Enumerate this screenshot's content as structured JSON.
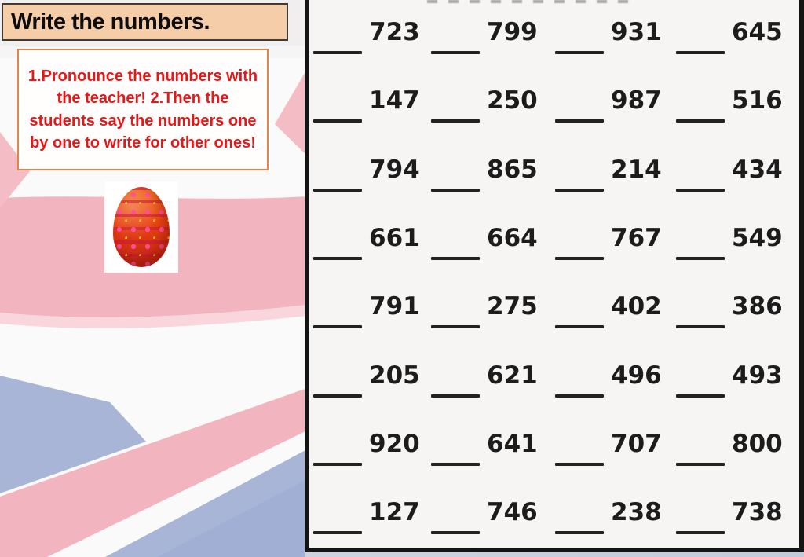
{
  "slide": {
    "kind": "presentation-slide",
    "background": "faded Union Jack flag (left), number worksheet (right)"
  },
  "title_box": {
    "text": "Write the numbers."
  },
  "instructions": {
    "text": "1.Pronounce the numbers with the teacher! 2.Then the students say the numbers one by one to write for other ones!"
  },
  "egg": {
    "description": "decorated red-orange Easter egg picture on white card"
  },
  "worksheet": {
    "blank_label": "____",
    "rows": [
      [
        "723",
        "799",
        "931",
        "645"
      ],
      [
        "147",
        "250",
        "987",
        "516"
      ],
      [
        "794",
        "865",
        "214",
        "434"
      ],
      [
        "661",
        "664",
        "767",
        "549"
      ],
      [
        "791",
        "275",
        "402",
        "386"
      ],
      [
        "205",
        "621",
        "496",
        "493"
      ],
      [
        "920",
        "641",
        "707",
        "800"
      ],
      [
        "127",
        "746",
        "238",
        "738"
      ]
    ]
  },
  "colors": {
    "flag_pink": "#f2b4be",
    "flag_blue": "#a9b5d7",
    "title_peach": "#f6cda9",
    "instruction_red": "#e81717",
    "instruction_border_orange": "#e0854e",
    "paper": "#f6f5f3",
    "worksheet_border": "#141414"
  }
}
